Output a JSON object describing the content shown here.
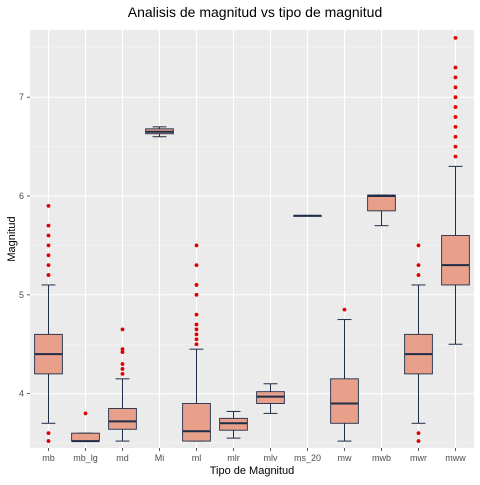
{
  "chart_data": {
    "type": "boxplot",
    "title": "Analisis de magnitud vs tipo de magnitud",
    "xlabel": "Tipo de Magnitud",
    "ylabel": "Magnitud",
    "ylim": [
      3.45,
      7.68
    ],
    "yticks": [
      4,
      5,
      6,
      7
    ],
    "grid": true,
    "colors": {
      "panel": "#ebebeb",
      "grid_major": "#ffffff",
      "box_fill": "#e9a08a",
      "box_line": "#1f2d48",
      "outlier": "#e00000",
      "tick_text": "#4d4d4d"
    },
    "categories": [
      "mb",
      "mb_lg",
      "md",
      "Mi",
      "ml",
      "mlr",
      "mlv",
      "ms_20",
      "mw",
      "mwb",
      "mwr",
      "mww"
    ],
    "boxes": [
      {
        "category": "mb",
        "whisker_low": 3.7,
        "q1": 4.2,
        "median": 4.4,
        "q3": 4.6,
        "whisker_high": 5.1,
        "outliers": [
          3.52,
          3.6,
          5.2,
          5.3,
          5.4,
          5.5,
          5.6,
          5.7,
          5.9
        ]
      },
      {
        "category": "mb_lg",
        "whisker_low": 3.52,
        "q1": 3.52,
        "median": 3.52,
        "q3": 3.6,
        "whisker_high": 3.6,
        "outliers": [
          3.8
        ]
      },
      {
        "category": "md",
        "whisker_low": 3.52,
        "q1": 3.64,
        "median": 3.72,
        "q3": 3.85,
        "whisker_high": 4.15,
        "outliers": [
          4.2,
          4.25,
          4.3,
          4.42,
          4.45,
          4.65
        ]
      },
      {
        "category": "Mi",
        "whisker_low": 6.6,
        "q1": 6.63,
        "median": 6.65,
        "q3": 6.68,
        "whisker_high": 6.7,
        "outliers": []
      },
      {
        "category": "ml",
        "whisker_low": 3.52,
        "q1": 3.52,
        "median": 3.62,
        "q3": 3.9,
        "whisker_high": 4.45,
        "outliers": [
          4.5,
          4.55,
          4.6,
          4.65,
          4.7,
          4.8,
          5.0,
          5.1,
          5.3,
          5.5
        ]
      },
      {
        "category": "mlr",
        "whisker_low": 3.55,
        "q1": 3.63,
        "median": 3.7,
        "q3": 3.75,
        "whisker_high": 3.82,
        "outliers": []
      },
      {
        "category": "mlv",
        "whisker_low": 3.8,
        "q1": 3.9,
        "median": 3.97,
        "q3": 4.02,
        "whisker_high": 4.1,
        "outliers": []
      },
      {
        "category": "ms_20",
        "whisker_low": 5.8,
        "q1": 5.8,
        "median": 5.8,
        "q3": 5.8,
        "whisker_high": 5.8,
        "outliers": []
      },
      {
        "category": "mw",
        "whisker_low": 3.52,
        "q1": 3.7,
        "median": 3.9,
        "q3": 4.15,
        "whisker_high": 4.75,
        "outliers": [
          4.85
        ]
      },
      {
        "category": "mwb",
        "whisker_low": 5.7,
        "q1": 5.85,
        "median": 6.0,
        "q3": 6.01,
        "whisker_high": 6.01,
        "outliers": []
      },
      {
        "category": "mwr",
        "whisker_low": 3.7,
        "q1": 4.2,
        "median": 4.4,
        "q3": 4.6,
        "whisker_high": 5.1,
        "outliers": [
          3.52,
          3.6,
          5.2,
          5.3,
          5.5
        ]
      },
      {
        "category": "mww",
        "whisker_low": 4.5,
        "q1": 5.1,
        "median": 5.3,
        "q3": 5.6,
        "whisker_high": 6.3,
        "outliers": [
          6.4,
          6.5,
          6.6,
          6.7,
          6.8,
          6.9,
          7.0,
          7.1,
          7.2,
          7.3,
          7.6
        ]
      }
    ]
  }
}
